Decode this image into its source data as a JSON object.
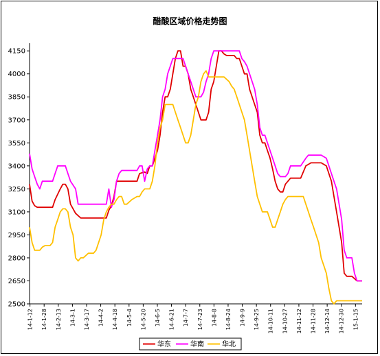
{
  "chart_data": {
    "type": "line",
    "title": "醋酸区域价格走势图",
    "xlabel": "",
    "ylabel": "",
    "ylim": [
      2500,
      4200
    ],
    "yticks": [
      2500,
      2650,
      2800,
      2950,
      3100,
      3250,
      3400,
      3550,
      3700,
      3850,
      4000,
      4150
    ],
    "x": [
      "14-1-12",
      "14-1-28",
      "14-2-13",
      "14-3-1",
      "14-3-17",
      "14-4-2",
      "14-4-18",
      "14-5-4",
      "14-5-20",
      "14-6-5",
      "14-6-21",
      "14-7-7",
      "14-7-23",
      "14-8-8",
      "14-8-24",
      "14-9-9",
      "14-9-25",
      "14-10-11",
      "14-10-27",
      "14-11-12",
      "14-11-28",
      "14-12-14",
      "14-12-30",
      "15-1-15"
    ],
    "grid": false,
    "legend_position": "bottom",
    "series": [
      {
        "name": "华东",
        "color": "#e00000",
        "points": [
          [
            0,
            3280
          ],
          [
            1,
            3170
          ],
          [
            2,
            3140
          ],
          [
            3,
            3130
          ],
          [
            6,
            3130
          ],
          [
            9,
            3130
          ],
          [
            10,
            3180
          ],
          [
            12,
            3250
          ],
          [
            13,
            3280
          ],
          [
            14,
            3280
          ],
          [
            15,
            3250
          ],
          [
            16,
            3150
          ],
          [
            18,
            3090
          ],
          [
            20,
            3060
          ],
          [
            24,
            3060
          ],
          [
            28,
            3060
          ],
          [
            30,
            3060
          ],
          [
            31,
            3110
          ],
          [
            32,
            3140
          ],
          [
            33,
            3200
          ],
          [
            34,
            3300
          ],
          [
            36,
            3300
          ],
          [
            40,
            3300
          ],
          [
            42,
            3300
          ],
          [
            43,
            3350
          ],
          [
            45,
            3360
          ],
          [
            46,
            3350
          ],
          [
            47,
            3400
          ],
          [
            48,
            3400
          ],
          [
            50,
            3500
          ],
          [
            51,
            3600
          ],
          [
            52,
            3750
          ],
          [
            53,
            3850
          ],
          [
            54,
            3850
          ],
          [
            55,
            3900
          ],
          [
            56,
            4000
          ],
          [
            57,
            4100
          ],
          [
            58,
            4150
          ],
          [
            59,
            4150
          ],
          [
            60,
            4050
          ],
          [
            61,
            4050
          ],
          [
            62,
            4000
          ],
          [
            63,
            3900
          ],
          [
            64,
            3850
          ],
          [
            65,
            3800
          ],
          [
            66,
            3750
          ],
          [
            67,
            3700
          ],
          [
            68,
            3700
          ],
          [
            69,
            3700
          ],
          [
            70,
            3750
          ],
          [
            71,
            3900
          ],
          [
            72,
            3950
          ],
          [
            73,
            4050
          ],
          [
            74,
            4150
          ],
          [
            75,
            4150
          ],
          [
            76,
            4130
          ],
          [
            77,
            4120
          ],
          [
            80,
            4120
          ],
          [
            81,
            4100
          ],
          [
            82,
            4100
          ],
          [
            83,
            4050
          ],
          [
            84,
            4000
          ],
          [
            85,
            4000
          ],
          [
            86,
            3900
          ],
          [
            87,
            3850
          ],
          [
            88,
            3800
          ],
          [
            89,
            3750
          ],
          [
            90,
            3600
          ],
          [
            91,
            3550
          ],
          [
            92,
            3550
          ],
          [
            93,
            3500
          ],
          [
            94,
            3450
          ],
          [
            95,
            3380
          ],
          [
            96,
            3300
          ],
          [
            97,
            3250
          ],
          [
            98,
            3230
          ],
          [
            99,
            3230
          ],
          [
            100,
            3280
          ],
          [
            101,
            3300
          ],
          [
            102,
            3320
          ],
          [
            104,
            3320
          ],
          [
            106,
            3320
          ],
          [
            108,
            3400
          ],
          [
            109,
            3410
          ],
          [
            110,
            3420
          ],
          [
            114,
            3420
          ],
          [
            116,
            3400
          ],
          [
            117,
            3350
          ],
          [
            118,
            3300
          ],
          [
            119,
            3200
          ],
          [
            120,
            3100
          ],
          [
            121,
            3000
          ],
          [
            122,
            2900
          ],
          [
            123,
            2700
          ],
          [
            124,
            2680
          ],
          [
            126,
            2680
          ],
          [
            128,
            2650
          ],
          [
            130,
            2650
          ]
        ]
      },
      {
        "name": "华南",
        "color": "#ff00ff",
        "points": [
          [
            0,
            3480
          ],
          [
            1,
            3380
          ],
          [
            2,
            3330
          ],
          [
            3,
            3280
          ],
          [
            4,
            3250
          ],
          [
            5,
            3300
          ],
          [
            7,
            3300
          ],
          [
            9,
            3300
          ],
          [
            10,
            3350
          ],
          [
            11,
            3400
          ],
          [
            13,
            3400
          ],
          [
            14,
            3400
          ],
          [
            15,
            3350
          ],
          [
            16,
            3300
          ],
          [
            18,
            3250
          ],
          [
            19,
            3150
          ],
          [
            22,
            3150
          ],
          [
            28,
            3150
          ],
          [
            30,
            3150
          ],
          [
            31,
            3250
          ],
          [
            32,
            3130
          ],
          [
            33,
            3180
          ],
          [
            34,
            3300
          ],
          [
            35,
            3350
          ],
          [
            36,
            3370
          ],
          [
            40,
            3370
          ],
          [
            42,
            3370
          ],
          [
            43,
            3400
          ],
          [
            44,
            3400
          ],
          [
            45,
            3300
          ],
          [
            46,
            3380
          ],
          [
            47,
            3400
          ],
          [
            48,
            3400
          ],
          [
            49,
            3500
          ],
          [
            50,
            3600
          ],
          [
            51,
            3700
          ],
          [
            52,
            3850
          ],
          [
            53,
            3900
          ],
          [
            54,
            4000
          ],
          [
            55,
            4050
          ],
          [
            56,
            4100
          ],
          [
            57,
            4100
          ],
          [
            59,
            4100
          ],
          [
            60,
            4100
          ],
          [
            61,
            4050
          ],
          [
            62,
            4000
          ],
          [
            63,
            3950
          ],
          [
            64,
            3900
          ],
          [
            65,
            3850
          ],
          [
            66,
            3850
          ],
          [
            67,
            3850
          ],
          [
            68,
            3880
          ],
          [
            69,
            3950
          ],
          [
            70,
            4000
          ],
          [
            71,
            4100
          ],
          [
            72,
            4150
          ],
          [
            75,
            4150
          ],
          [
            78,
            4150
          ],
          [
            82,
            4150
          ],
          [
            83,
            4100
          ],
          [
            84,
            4080
          ],
          [
            85,
            4050
          ],
          [
            86,
            4000
          ],
          [
            87,
            3950
          ],
          [
            88,
            3900
          ],
          [
            89,
            3800
          ],
          [
            90,
            3650
          ],
          [
            91,
            3600
          ],
          [
            92,
            3600
          ],
          [
            93,
            3550
          ],
          [
            94,
            3500
          ],
          [
            95,
            3450
          ],
          [
            96,
            3400
          ],
          [
            97,
            3350
          ],
          [
            98,
            3330
          ],
          [
            100,
            3330
          ],
          [
            101,
            3350
          ],
          [
            102,
            3400
          ],
          [
            104,
            3400
          ],
          [
            106,
            3400
          ],
          [
            108,
            3450
          ],
          [
            109,
            3470
          ],
          [
            110,
            3470
          ],
          [
            114,
            3470
          ],
          [
            116,
            3450
          ],
          [
            117,
            3400
          ],
          [
            118,
            3350
          ],
          [
            119,
            3300
          ],
          [
            120,
            3250
          ],
          [
            121,
            3150
          ],
          [
            122,
            3050
          ],
          [
            123,
            2850
          ],
          [
            124,
            2800
          ],
          [
            126,
            2800
          ],
          [
            127,
            2700
          ],
          [
            128,
            2650
          ],
          [
            130,
            2650
          ]
        ]
      },
      {
        "name": "华北",
        "color": "#ffc000",
        "points": [
          [
            0,
            3000
          ],
          [
            1,
            2900
          ],
          [
            2,
            2850
          ],
          [
            3,
            2850
          ],
          [
            4,
            2850
          ],
          [
            5,
            2870
          ],
          [
            6,
            2880
          ],
          [
            8,
            2880
          ],
          [
            9,
            2900
          ],
          [
            10,
            3000
          ],
          [
            11,
            3050
          ],
          [
            12,
            3100
          ],
          [
            13,
            3120
          ],
          [
            14,
            3120
          ],
          [
            15,
            3100
          ],
          [
            16,
            3000
          ],
          [
            17,
            2950
          ],
          [
            18,
            2800
          ],
          [
            19,
            2780
          ],
          [
            20,
            2800
          ],
          [
            21,
            2800
          ],
          [
            23,
            2830
          ],
          [
            25,
            2830
          ],
          [
            26,
            2850
          ],
          [
            27,
            2900
          ],
          [
            28,
            2950
          ],
          [
            29,
            3050
          ],
          [
            30,
            3100
          ],
          [
            31,
            3130
          ],
          [
            32,
            3150
          ],
          [
            33,
            3150
          ],
          [
            34,
            3180
          ],
          [
            35,
            3200
          ],
          [
            36,
            3200
          ],
          [
            37,
            3150
          ],
          [
            38,
            3150
          ],
          [
            40,
            3180
          ],
          [
            42,
            3200
          ],
          [
            43,
            3200
          ],
          [
            44,
            3230
          ],
          [
            45,
            3250
          ],
          [
            46,
            3250
          ],
          [
            47,
            3250
          ],
          [
            48,
            3300
          ],
          [
            49,
            3400
          ],
          [
            50,
            3550
          ],
          [
            51,
            3650
          ],
          [
            52,
            3700
          ],
          [
            53,
            3800
          ],
          [
            54,
            3800
          ],
          [
            55,
            3800
          ],
          [
            56,
            3800
          ],
          [
            57,
            3750
          ],
          [
            58,
            3700
          ],
          [
            59,
            3650
          ],
          [
            60,
            3600
          ],
          [
            61,
            3550
          ],
          [
            62,
            3550
          ],
          [
            63,
            3600
          ],
          [
            64,
            3700
          ],
          [
            65,
            3800
          ],
          [
            66,
            3850
          ],
          [
            67,
            3950
          ],
          [
            68,
            4000
          ],
          [
            69,
            4020
          ],
          [
            70,
            3980
          ],
          [
            73,
            3980
          ],
          [
            76,
            3980
          ],
          [
            78,
            3950
          ],
          [
            79,
            3920
          ],
          [
            80,
            3900
          ],
          [
            81,
            3850
          ],
          [
            82,
            3800
          ],
          [
            83,
            3750
          ],
          [
            84,
            3700
          ],
          [
            85,
            3600
          ],
          [
            86,
            3500
          ],
          [
            87,
            3400
          ],
          [
            88,
            3300
          ],
          [
            89,
            3200
          ],
          [
            90,
            3150
          ],
          [
            91,
            3100
          ],
          [
            92,
            3100
          ],
          [
            93,
            3100
          ],
          [
            94,
            3050
          ],
          [
            95,
            3000
          ],
          [
            96,
            3000
          ],
          [
            97,
            3050
          ],
          [
            98,
            3100
          ],
          [
            99,
            3150
          ],
          [
            100,
            3180
          ],
          [
            101,
            3200
          ],
          [
            102,
            3200
          ],
          [
            105,
            3200
          ],
          [
            107,
            3200
          ],
          [
            108,
            3150
          ],
          [
            109,
            3100
          ],
          [
            110,
            3050
          ],
          [
            111,
            3000
          ],
          [
            112,
            2950
          ],
          [
            113,
            2900
          ],
          [
            114,
            2800
          ],
          [
            115,
            2750
          ],
          [
            116,
            2700
          ],
          [
            117,
            2600
          ],
          [
            118,
            2520
          ],
          [
            119,
            2500
          ],
          [
            120,
            2520
          ],
          [
            125,
            2520
          ],
          [
            128,
            2520
          ],
          [
            130,
            2520
          ]
        ]
      }
    ]
  }
}
